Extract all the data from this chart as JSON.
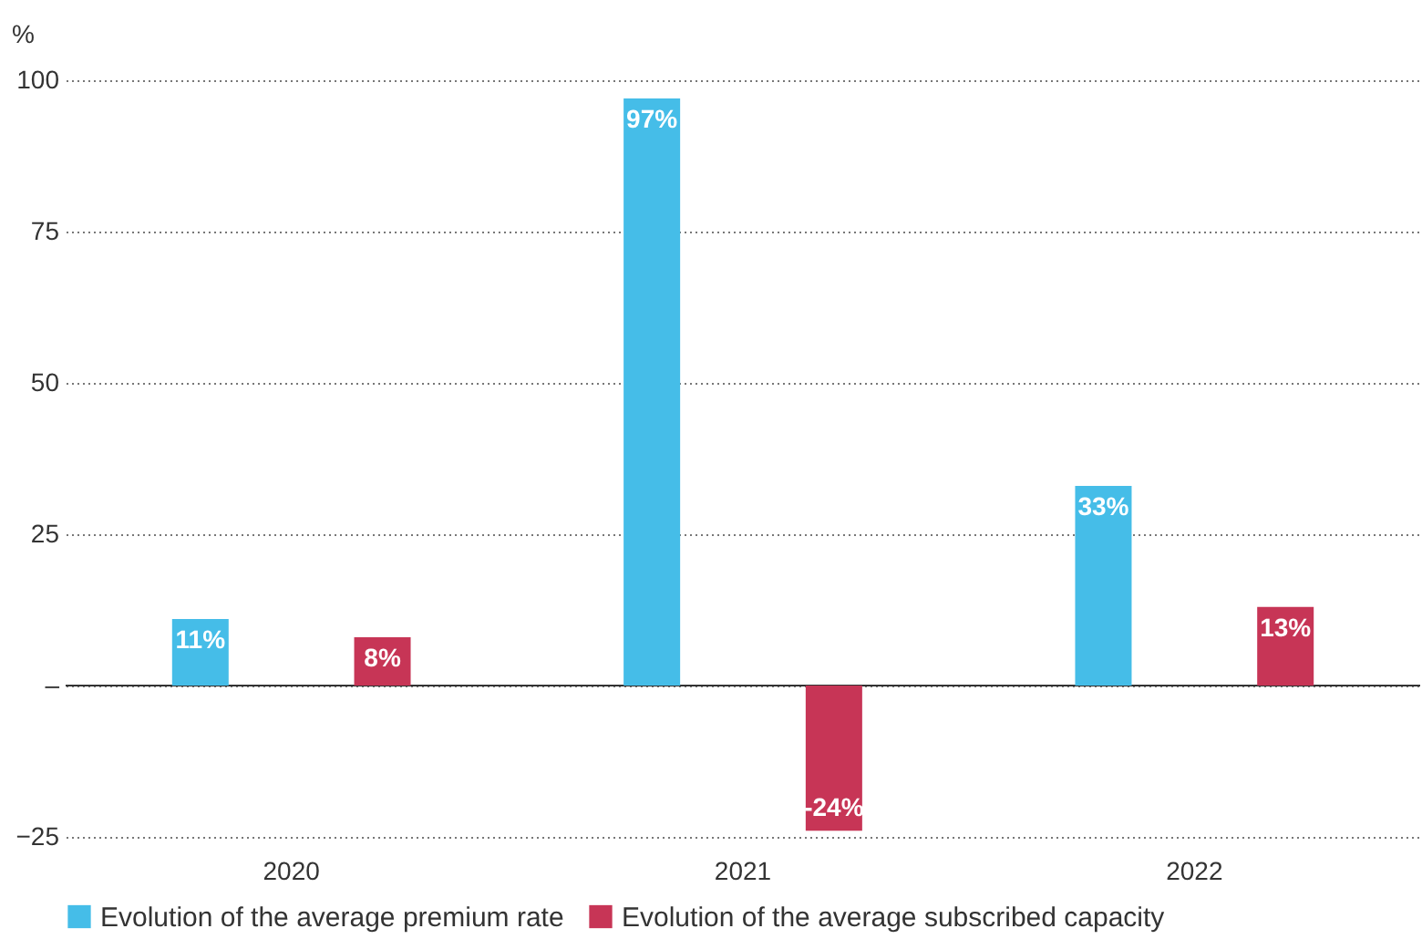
{
  "chart_data": {
    "type": "bar",
    "ylabel": "%",
    "categories": [
      "2020",
      "2021",
      "2022"
    ],
    "series": [
      {
        "name": "Evolution of the average premium rate",
        "color": "#45bde8",
        "values": [
          11,
          97,
          33
        ],
        "value_labels": [
          "11%",
          "97%",
          "33%"
        ]
      },
      {
        "name": "Evolution of the average subscribed capacity",
        "color": "#c73556",
        "values": [
          8,
          -24,
          13
        ],
        "value_labels": [
          "8%",
          "-24%",
          "13%"
        ]
      }
    ],
    "ylim": [
      -25,
      100
    ],
    "yticks": [
      {
        "value": -25,
        "label": "−25"
      },
      {
        "value": 0,
        "label": "–"
      },
      25,
      50,
      75,
      100
    ],
    "grid": "y",
    "legend": "bottom",
    "ref_lines": [
      {
        "axis": "y",
        "value": 0,
        "color": "#333333"
      }
    ]
  }
}
